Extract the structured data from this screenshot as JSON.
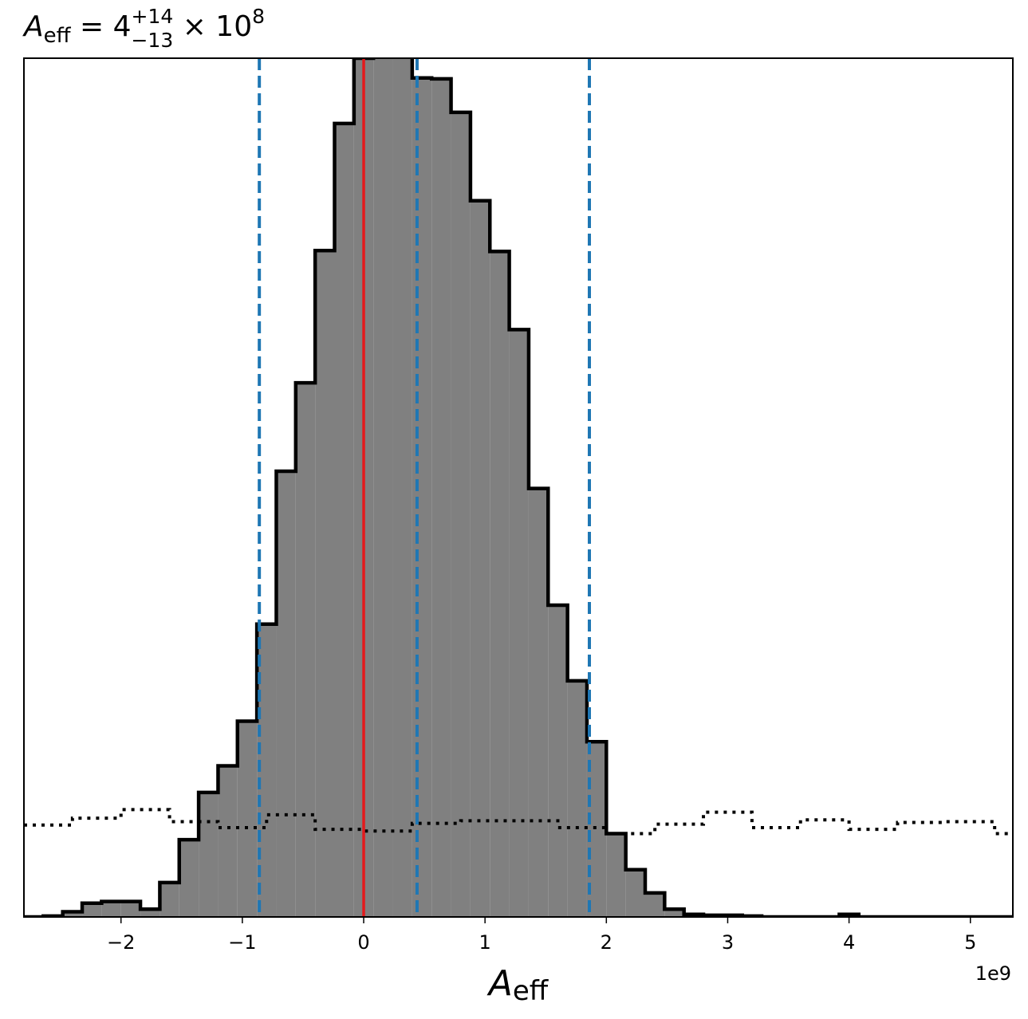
{
  "chart_data": {
    "type": "histogram",
    "title": {
      "var": "A",
      "sub": "eff",
      "eq": " = 4",
      "sup": "+14",
      "lower": "−13",
      "times": " × 10",
      "pow": "8"
    },
    "xlabel": {
      "var": "A",
      "sub": "eff"
    },
    "offset_text": "1e9",
    "xlim": [
      -2.8,
      5.35
    ],
    "ylim": [
      0,
      1.0
    ],
    "xticks": [
      {
        "value": -2,
        "label": "−2"
      },
      {
        "value": -1,
        "label": "−1"
      },
      {
        "value": 0,
        "label": "0"
      },
      {
        "value": 1,
        "label": "1"
      },
      {
        "value": 2,
        "label": "2"
      },
      {
        "value": 3,
        "label": "3"
      },
      {
        "value": 4,
        "label": "4"
      },
      {
        "value": 5,
        "label": "5"
      }
    ],
    "bin_edges": [
      -2.8,
      -2.64,
      -2.48,
      -2.32,
      -2.16,
      -2.0,
      -1.84,
      -1.68,
      -1.52,
      -1.36,
      -1.2,
      -1.04,
      -0.88,
      -0.72,
      -0.56,
      -0.4,
      -0.24,
      -0.08,
      0.08,
      0.24,
      0.4,
      0.56,
      0.72,
      0.88,
      1.04,
      1.2,
      1.36,
      1.52,
      1.68,
      1.84,
      2.0,
      2.16,
      2.32,
      2.48,
      2.64,
      2.8,
      2.96,
      3.12,
      3.28,
      3.44,
      3.6,
      3.76,
      3.92,
      4.08,
      4.24,
      4.4,
      4.56,
      4.72,
      4.88,
      5.04,
      5.2,
      5.35
    ],
    "posterior_values": [
      0,
      0.001,
      0.006,
      0.016,
      0.018,
      0.018,
      0.009,
      0.04,
      0.09,
      0.145,
      0.176,
      0.228,
      0.341,
      0.519,
      0.622,
      0.776,
      0.924,
      1.0,
      1.09,
      1.095,
      0.977,
      0.976,
      0.937,
      0.834,
      0.775,
      0.684,
      0.499,
      0.363,
      0.275,
      0.204,
      0.097,
      0.055,
      0.028,
      0.009,
      0.003,
      0.002,
      0.002,
      0.001,
      0,
      0,
      0,
      0,
      0.003,
      0,
      0,
      0,
      0,
      0,
      0,
      0,
      0
    ],
    "prior_bin_edges": [
      -2.8,
      -2.4,
      -2.0,
      -1.6,
      -1.2,
      -0.8,
      -0.4,
      0.0,
      0.4,
      0.8,
      1.2,
      1.6,
      2.0,
      2.4,
      2.8,
      3.2,
      3.6,
      4.0,
      4.4,
      4.8,
      5.2,
      5.35
    ],
    "prior_values": [
      0.107,
      0.115,
      0.125,
      0.111,
      0.104,
      0.119,
      0.102,
      0.1,
      0.109,
      0.112,
      0.112,
      0.104,
      0.097,
      0.108,
      0.122,
      0.104,
      0.113,
      0.102,
      0.11,
      0.111,
      0.097
    ],
    "median": 0.44,
    "quantiles": [
      -0.86,
      1.86
    ],
    "truth": 0.0,
    "colors": {
      "hist_fill": "#808080",
      "hist_edge": "#000000",
      "quantile_line": "#1f77b4",
      "truth_line": "#e41a1c",
      "prior_line": "#000000"
    }
  }
}
